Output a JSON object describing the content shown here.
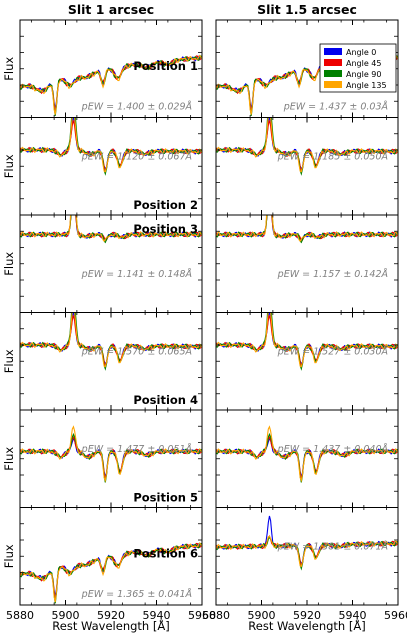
{
  "chart_data": {
    "type": "line",
    "column_titles": [
      "Slit 1 arcsec",
      "Slit 1.5 arcsec"
    ],
    "xlabel": "Rest Wavelength [Å]",
    "ylabel": "Flux",
    "xlim": [
      5880,
      5960
    ],
    "xticks": [
      5880,
      5900,
      5920,
      5940,
      5960
    ],
    "legend": {
      "location": "top-right of the first right-column panel",
      "entries": [
        {
          "name": "Angle 0",
          "color": "#0000ee"
        },
        {
          "name": "Angle 45",
          "color": "#ee0000"
        },
        {
          "name": "Angle 90",
          "color": "#008000"
        },
        {
          "name": "Angle 135",
          "color": "#ffa500"
        }
      ]
    },
    "panels": [
      {
        "row": 1,
        "column": 1,
        "position_label": "Position 1",
        "pew": "pEW = 1.400 ± 0.029Å",
        "shape": "absorption"
      },
      {
        "row": 1,
        "column": 2,
        "position_label": "",
        "pew": "pEW = 1.437 ± 0.03Å",
        "shape": "absorption"
      },
      {
        "row": 2,
        "column": 1,
        "position_label": "Position 2",
        "pew": "pEW = 1.120 ± 0.067Å",
        "shape": "emission"
      },
      {
        "row": 2,
        "column": 2,
        "position_label": "",
        "pew": "pEW = 1.185 ± 0.050Å",
        "shape": "emission"
      },
      {
        "row": 3,
        "column": 1,
        "position_label": "Position 3",
        "pew": "pEW = 1.141 ± 0.148Å",
        "shape": "strong-emission"
      },
      {
        "row": 3,
        "column": 2,
        "position_label": "",
        "pew": "pEW = 1.157 ± 0.142Å",
        "shape": "strong-emission"
      },
      {
        "row": 4,
        "column": 1,
        "position_label": "Position 4",
        "pew": "pEW = 1.570 ± 0.065Å",
        "shape": "emission"
      },
      {
        "row": 4,
        "column": 2,
        "position_label": "",
        "pew": "pEW = 1.527 ± 0.030Å",
        "shape": "emission"
      },
      {
        "row": 5,
        "column": 1,
        "position_label": "Position 5",
        "pew": "pEW = 1.477 ± 0.051Å",
        "shape": "weak-emission"
      },
      {
        "row": 5,
        "column": 2,
        "position_label": "",
        "pew": "pEW = 1.437 ± 0.040Å",
        "shape": "weak-emission"
      },
      {
        "row": 6,
        "column": 1,
        "position_label": "Position 6",
        "pew": "pEW = 1.365 ± 0.041Å",
        "shape": "absorption"
      },
      {
        "row": 6,
        "column": 2,
        "position_label": "",
        "pew": "pEW = 1.381 ± 0.071Å",
        "shape": "emission-blue"
      }
    ]
  }
}
